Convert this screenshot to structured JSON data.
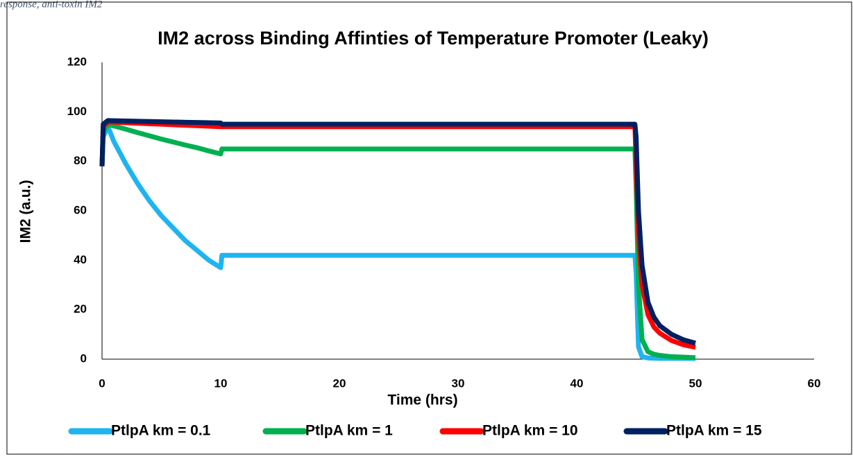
{
  "caption": "response, anti-toxin IM2",
  "chart_data": {
    "type": "line",
    "title": "IM2 across Binding Affinties of Temperature Promoter (Leaky)",
    "x_label": "Time (hrs)",
    "y_label": "IM2 (a.u.)",
    "x": [
      0,
      0.1,
      0.5,
      1,
      2,
      3,
      4,
      5,
      6,
      7,
      8,
      9,
      10,
      10.1,
      20,
      30,
      40,
      44.9,
      45,
      45.2,
      45.5,
      46,
      46.5,
      47,
      48,
      49,
      50
    ],
    "series": [
      {
        "name": "PtlpA km = 0.1",
        "color": "#1fb4f0",
        "values": [
          78,
          90,
          94,
          88,
          79,
          71,
          64,
          58,
          53,
          48,
          44,
          40,
          37,
          42,
          42,
          42,
          42,
          42,
          35,
          5,
          1,
          0.5,
          0.4,
          0.3,
          0.3,
          0.3,
          0.3
        ]
      },
      {
        "name": "PtlpA km = 1",
        "color": "#00b050",
        "values": [
          78,
          92,
          95,
          94.3,
          93,
          91.6,
          90.3,
          89,
          87.8,
          86.6,
          85.5,
          84.2,
          83,
          85,
          85,
          85,
          85,
          85,
          70,
          30,
          8,
          3,
          2,
          1.5,
          1,
          0.8,
          0.6
        ]
      },
      {
        "name": "PtlpA km = 10",
        "color": "#ff0000",
        "values": [
          78,
          94,
          96,
          95.8,
          95.6,
          95.4,
          95.2,
          95,
          94.8,
          94.6,
          94.4,
          94.2,
          94,
          94,
          94,
          94,
          94,
          94,
          80,
          50,
          30,
          18,
          13,
          10.5,
          7.5,
          5.8,
          4.8
        ]
      },
      {
        "name": "PtlpA km = 15",
        "color": "#002060",
        "values": [
          78,
          95,
          96.5,
          96.4,
          96.3,
          96.2,
          96.1,
          96,
          95.9,
          95.8,
          95.7,
          95.6,
          95.5,
          95,
          95,
          95,
          95,
          95,
          90,
          60,
          38,
          23,
          17,
          13.5,
          10,
          7.8,
          6.5
        ]
      }
    ],
    "xlim": [
      0,
      60
    ],
    "xticks": [
      0,
      10,
      20,
      30,
      40,
      50,
      60
    ],
    "ylim": [
      0,
      120
    ],
    "yticks": [
      0,
      20,
      40,
      60,
      80,
      100,
      120
    ],
    "grid": false,
    "legend": "bottom"
  }
}
